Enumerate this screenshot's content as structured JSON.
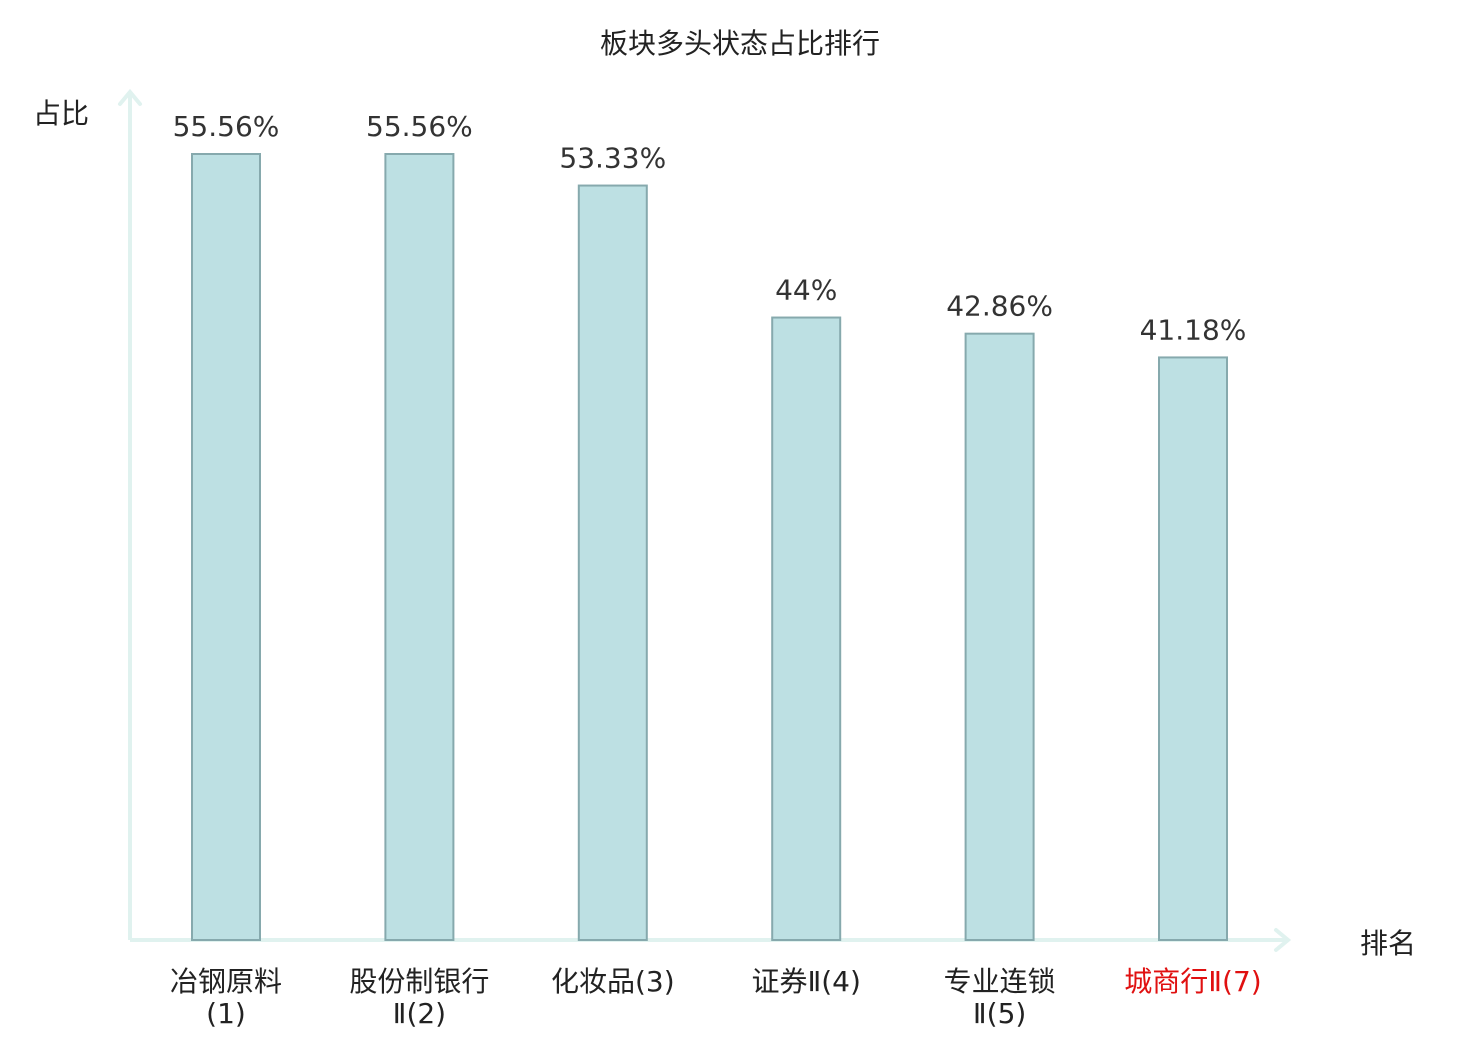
{
  "chart_data": {
    "type": "bar",
    "title": "板块多头状态占比排行",
    "xlabel": "排名",
    "ylabel": "占比",
    "categories": [
      "冶钢原料(1)",
      "股份制银行Ⅱ(2)",
      "化妆品(3)",
      "证券Ⅱ(4)",
      "专业连锁Ⅱ(5)",
      "城商行Ⅱ(7)"
    ],
    "values": [
      55.56,
      55.56,
      53.33,
      44,
      42.86,
      41.18
    ],
    "value_labels": [
      "55.56%",
      "55.56%",
      "53.33%",
      "44%",
      "42.86%",
      "41.18%"
    ],
    "highlight_category": "城商行Ⅱ(7)",
    "ylim": [
      0,
      55.56
    ],
    "grid": false,
    "legend": "none",
    "colors": {
      "bar_fill": "#bde0e3",
      "bar_stroke": "#86a9ad",
      "axis": "#e0f2ef",
      "label_text": "#333333",
      "highlight_text": "#e01010"
    }
  }
}
